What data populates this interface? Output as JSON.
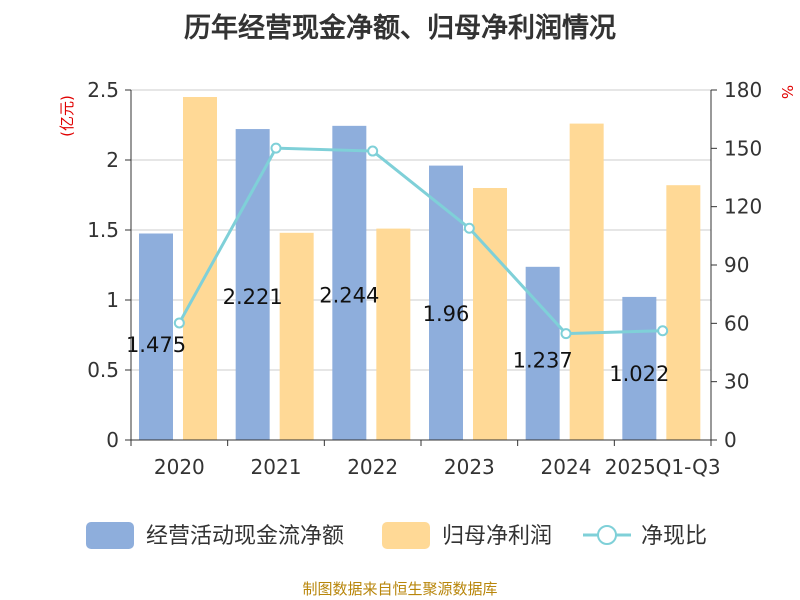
{
  "title": "历年经营现金净额、归母净利润情况",
  "source": "制图数据来自恒生聚源数据库",
  "colors": {
    "cash": "#8eaedc",
    "profit": "#ffd996",
    "ratio": "#7fd0d8"
  },
  "chart_data": {
    "type": "bar",
    "categories": [
      "2020",
      "2021",
      "2022",
      "2023",
      "2024",
      "2025Q1-Q3"
    ],
    "series": [
      {
        "name": "经营活动现金流净额",
        "type": "bar",
        "axis": "left",
        "values": [
          1.475,
          2.221,
          2.244,
          1.96,
          1.237,
          1.022
        ],
        "labels": [
          "1.475",
          "2.221",
          "2.244",
          "1.96",
          "1.237",
          "1.022"
        ]
      },
      {
        "name": "归母净利润",
        "type": "bar",
        "axis": "left",
        "values": [
          2.45,
          1.48,
          1.51,
          1.8,
          2.26,
          1.82
        ]
      },
      {
        "name": "净现比",
        "type": "line",
        "axis": "right",
        "values": [
          60.2,
          150.1,
          148.6,
          108.9,
          54.7,
          56.2
        ]
      }
    ],
    "y_left": {
      "unit": "(亿元)",
      "min": 0,
      "max": 2.5,
      "ticks": [
        0,
        0.5,
        1,
        1.5,
        2,
        2.5
      ],
      "tick_labels": [
        "0",
        "0.5",
        "1",
        "1.5",
        "2",
        "2.5"
      ]
    },
    "y_right": {
      "unit": "%",
      "min": 0,
      "max": 180,
      "ticks": [
        0,
        30,
        60,
        90,
        120,
        150,
        180
      ],
      "tick_labels": [
        "0",
        "30",
        "60",
        "90",
        "120",
        "150",
        "180"
      ]
    },
    "grid": true,
    "legend_position": "bottom"
  }
}
